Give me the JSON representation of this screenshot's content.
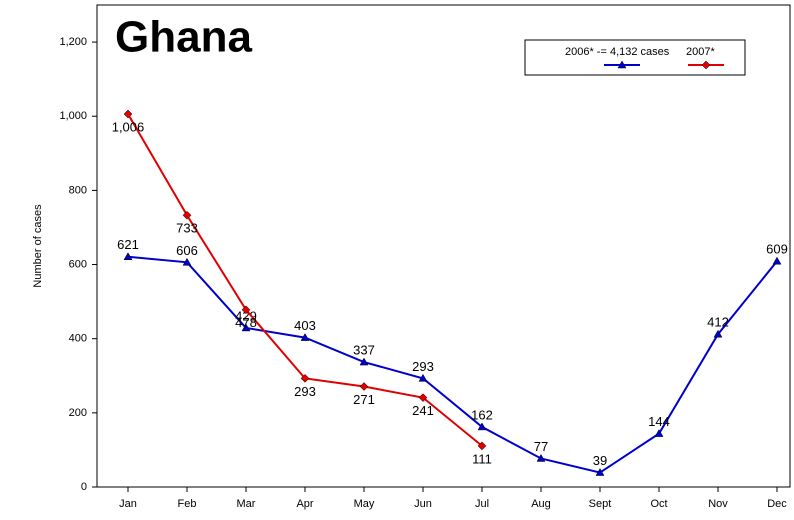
{
  "chart_data": {
    "type": "line",
    "title": "Ghana",
    "y_label": "Number of cases",
    "categories": [
      "Jan",
      "Feb",
      "Mar",
      "Apr",
      "May",
      "Jun",
      "Jul",
      "Aug",
      "Sept",
      "Oct",
      "Nov",
      "Dec"
    ],
    "series": [
      {
        "name": "2006* -= 4,132 cases",
        "color": "#0000cc",
        "marker": "triangle",
        "values": [
          621,
          606,
          429,
          403,
          337,
          293,
          162,
          77,
          39,
          144,
          412,
          609
        ]
      },
      {
        "name": "2007*",
        "color": "#e00000",
        "marker": "diamond",
        "values": [
          1006,
          733,
          478,
          293,
          271,
          241,
          111,
          null,
          null,
          null,
          null,
          null
        ],
        "value_labels": [
          "1,006",
          "733",
          "478",
          "293",
          "271",
          "241",
          "111",
          null,
          null,
          null,
          null,
          null
        ]
      }
    ],
    "ylim": [
      0,
      1300
    ],
    "yticks": [
      0,
      200,
      400,
      600,
      800,
      {
        "value": 1000,
        "label": "1,000"
      },
      {
        "value": 1200,
        "label": "1,200"
      }
    ],
    "grid": false
  }
}
